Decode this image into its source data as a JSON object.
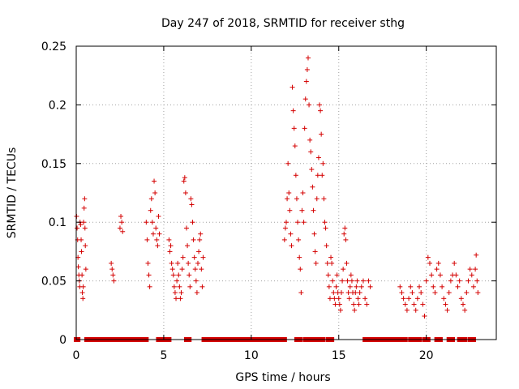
{
  "chart_data": {
    "type": "scatter",
    "title": "Day 247 of 2018, SRMTID for receiver sthg",
    "xlabel": "GPS time / hours",
    "ylabel": "SRMTID / TECUs",
    "xlim": [
      0,
      24
    ],
    "ylim": [
      0,
      0.25
    ],
    "xticks": [
      "0",
      "5",
      "10",
      "15",
      "20"
    ],
    "xtick_values": [
      0,
      5,
      10,
      15,
      20
    ],
    "yticks": [
      "0",
      "0.05",
      "0.1",
      "0.15",
      "0.2",
      "0.25"
    ],
    "ytick_values": [
      0,
      0.05,
      0.1,
      0.15,
      0.2,
      0.25
    ],
    "grid": true,
    "marker": "plus",
    "color": "#d40000",
    "series": [
      {
        "name": "SRMTID",
        "points": [
          [
            0.02,
            0.105
          ],
          [
            0.05,
            0.095
          ],
          [
            0.08,
            0.085
          ],
          [
            0.1,
            0.07
          ],
          [
            0.12,
            0.062
          ],
          [
            0.15,
            0.055
          ],
          [
            0.18,
            0.05
          ],
          [
            0.2,
            0.045
          ],
          [
            0.22,
            0.1
          ],
          [
            0.25,
            0.098
          ],
          [
            0.28,
            0.085
          ],
          [
            0.3,
            0.075
          ],
          [
            0.33,
            0.055
          ],
          [
            0.35,
            0.04
          ],
          [
            0.38,
            0.035
          ],
          [
            0.4,
            0.045
          ],
          [
            0.42,
            0.1
          ],
          [
            0.45,
            0.112
          ],
          [
            0.48,
            0.12
          ],
          [
            0.5,
            0.095
          ],
          [
            0.52,
            0.08
          ],
          [
            0.55,
            0.06
          ],
          [
            2.0,
            0.065
          ],
          [
            2.05,
            0.06
          ],
          [
            2.1,
            0.055
          ],
          [
            2.15,
            0.05
          ],
          [
            2.5,
            0.095
          ],
          [
            2.55,
            0.105
          ],
          [
            2.6,
            0.1
          ],
          [
            2.65,
            0.092
          ],
          [
            4.0,
            0.1
          ],
          [
            4.05,
            0.085
          ],
          [
            4.1,
            0.065
          ],
          [
            4.15,
            0.055
          ],
          [
            4.2,
            0.045
          ],
          [
            4.25,
            0.11
          ],
          [
            4.3,
            0.12
          ],
          [
            4.35,
            0.1
          ],
          [
            4.4,
            0.09
          ],
          [
            4.45,
            0.135
          ],
          [
            4.5,
            0.125
          ],
          [
            4.55,
            0.095
          ],
          [
            4.6,
            0.085
          ],
          [
            4.65,
            0.08
          ],
          [
            4.7,
            0.105
          ],
          [
            4.75,
            0.09
          ],
          [
            5.3,
            0.085
          ],
          [
            5.35,
            0.075
          ],
          [
            5.4,
            0.08
          ],
          [
            5.45,
            0.065
          ],
          [
            5.5,
            0.06
          ],
          [
            5.55,
            0.055
          ],
          [
            5.6,
            0.045
          ],
          [
            5.65,
            0.04
          ],
          [
            5.7,
            0.035
          ],
          [
            5.75,
            0.05
          ],
          [
            5.8,
            0.065
          ],
          [
            5.85,
            0.055
          ],
          [
            5.9,
            0.045
          ],
          [
            5.95,
            0.035
          ],
          [
            6.0,
            0.04
          ],
          [
            6.05,
            0.06
          ],
          [
            6.1,
            0.07
          ],
          [
            6.15,
            0.135
          ],
          [
            6.2,
            0.138
          ],
          [
            6.25,
            0.125
          ],
          [
            6.3,
            0.095
          ],
          [
            6.35,
            0.08
          ],
          [
            6.4,
            0.065
          ],
          [
            6.45,
            0.055
          ],
          [
            6.5,
            0.045
          ],
          [
            6.55,
            0.12
          ],
          [
            6.6,
            0.115
          ],
          [
            6.65,
            0.1
          ],
          [
            6.7,
            0.085
          ],
          [
            6.75,
            0.07
          ],
          [
            6.8,
            0.06
          ],
          [
            6.85,
            0.05
          ],
          [
            6.9,
            0.04
          ],
          [
            6.95,
            0.065
          ],
          [
            7.0,
            0.075
          ],
          [
            7.05,
            0.085
          ],
          [
            7.1,
            0.09
          ],
          [
            7.15,
            0.06
          ],
          [
            7.2,
            0.045
          ],
          [
            7.25,
            0.07
          ],
          [
            11.9,
            0.085
          ],
          [
            11.95,
            0.095
          ],
          [
            12.0,
            0.1
          ],
          [
            12.05,
            0.12
          ],
          [
            12.1,
            0.15
          ],
          [
            12.15,
            0.125
          ],
          [
            12.2,
            0.11
          ],
          [
            12.25,
            0.09
          ],
          [
            12.3,
            0.08
          ],
          [
            12.35,
            0.215
          ],
          [
            12.4,
            0.195
          ],
          [
            12.45,
            0.18
          ],
          [
            12.5,
            0.165
          ],
          [
            12.55,
            0.14
          ],
          [
            12.6,
            0.12
          ],
          [
            12.65,
            0.1
          ],
          [
            12.7,
            0.085
          ],
          [
            12.75,
            0.07
          ],
          [
            12.8,
            0.06
          ],
          [
            12.85,
            0.04
          ],
          [
            12.9,
            0.11
          ],
          [
            12.95,
            0.125
          ],
          [
            13.0,
            0.1
          ],
          [
            13.05,
            0.18
          ],
          [
            13.1,
            0.205
          ],
          [
            13.15,
            0.22
          ],
          [
            13.2,
            0.23
          ],
          [
            13.25,
            0.24
          ],
          [
            13.3,
            0.2
          ],
          [
            13.35,
            0.17
          ],
          [
            13.4,
            0.16
          ],
          [
            13.45,
            0.145
          ],
          [
            13.5,
            0.13
          ],
          [
            13.55,
            0.11
          ],
          [
            13.6,
            0.09
          ],
          [
            13.65,
            0.075
          ],
          [
            13.7,
            0.065
          ],
          [
            13.75,
            0.12
          ],
          [
            13.8,
            0.14
          ],
          [
            13.85,
            0.155
          ],
          [
            13.9,
            0.2
          ],
          [
            13.95,
            0.195
          ],
          [
            14.0,
            0.175
          ],
          [
            14.05,
            0.14
          ],
          [
            14.1,
            0.15
          ],
          [
            14.15,
            0.12
          ],
          [
            14.2,
            0.1
          ],
          [
            14.25,
            0.095
          ],
          [
            14.3,
            0.08
          ],
          [
            14.35,
            0.065
          ],
          [
            14.4,
            0.055
          ],
          [
            14.45,
            0.045
          ],
          [
            14.5,
            0.035
          ],
          [
            14.55,
            0.07
          ],
          [
            14.6,
            0.065
          ],
          [
            14.65,
            0.05
          ],
          [
            14.7,
            0.04
          ],
          [
            14.75,
            0.035
          ],
          [
            14.8,
            0.03
          ],
          [
            14.85,
            0.045
          ],
          [
            14.9,
            0.055
          ],
          [
            14.95,
            0.04
          ],
          [
            15.0,
            0.035
          ],
          [
            15.05,
            0.03
          ],
          [
            15.1,
            0.025
          ],
          [
            15.15,
            0.04
          ],
          [
            15.2,
            0.05
          ],
          [
            15.25,
            0.06
          ],
          [
            15.3,
            0.09
          ],
          [
            15.35,
            0.095
          ],
          [
            15.4,
            0.085
          ],
          [
            15.45,
            0.065
          ],
          [
            15.5,
            0.05
          ],
          [
            15.55,
            0.04
          ],
          [
            15.6,
            0.035
          ],
          [
            15.65,
            0.045
          ],
          [
            15.7,
            0.055
          ],
          [
            15.75,
            0.05
          ],
          [
            15.8,
            0.04
          ],
          [
            15.85,
            0.03
          ],
          [
            15.9,
            0.025
          ],
          [
            15.95,
            0.04
          ],
          [
            16.0,
            0.045
          ],
          [
            16.05,
            0.05
          ],
          [
            16.1,
            0.035
          ],
          [
            16.15,
            0.03
          ],
          [
            16.2,
            0.04
          ],
          [
            16.3,
            0.045
          ],
          [
            16.4,
            0.05
          ],
          [
            16.5,
            0.035
          ],
          [
            16.6,
            0.03
          ],
          [
            16.7,
            0.05
          ],
          [
            16.8,
            0.045
          ],
          [
            18.5,
            0.045
          ],
          [
            18.6,
            0.04
          ],
          [
            18.7,
            0.035
          ],
          [
            18.8,
            0.03
          ],
          [
            18.9,
            0.025
          ],
          [
            19.0,
            0.035
          ],
          [
            19.1,
            0.045
          ],
          [
            19.2,
            0.04
          ],
          [
            19.3,
            0.03
          ],
          [
            19.4,
            0.025
          ],
          [
            19.5,
            0.035
          ],
          [
            19.6,
            0.045
          ],
          [
            19.7,
            0.04
          ],
          [
            19.8,
            0.03
          ],
          [
            19.9,
            0.02
          ],
          [
            20.0,
            0.05
          ],
          [
            20.1,
            0.07
          ],
          [
            20.2,
            0.065
          ],
          [
            20.3,
            0.055
          ],
          [
            20.4,
            0.045
          ],
          [
            20.5,
            0.04
          ],
          [
            20.6,
            0.06
          ],
          [
            20.7,
            0.065
          ],
          [
            20.8,
            0.055
          ],
          [
            20.9,
            0.045
          ],
          [
            21.0,
            0.035
          ],
          [
            21.1,
            0.03
          ],
          [
            21.2,
            0.025
          ],
          [
            21.3,
            0.04
          ],
          [
            21.4,
            0.05
          ],
          [
            21.5,
            0.055
          ],
          [
            21.6,
            0.065
          ],
          [
            21.7,
            0.055
          ],
          [
            21.8,
            0.045
          ],
          [
            21.9,
            0.05
          ],
          [
            22.0,
            0.035
          ],
          [
            22.1,
            0.03
          ],
          [
            22.2,
            0.025
          ],
          [
            22.3,
            0.04
          ],
          [
            22.4,
            0.05
          ],
          [
            22.5,
            0.06
          ],
          [
            22.6,
            0.055
          ],
          [
            22.7,
            0.045
          ],
          [
            22.8,
            0.06
          ],
          [
            22.85,
            0.072
          ],
          [
            22.9,
            0.05
          ],
          [
            22.95,
            0.04
          ]
        ]
      }
    ],
    "zero_value_ranges": [
      [
        0.0,
        0.1
      ],
      [
        0.6,
        4.0
      ],
      [
        4.7,
        5.3
      ],
      [
        6.3,
        6.45
      ],
      [
        7.3,
        11.9
      ],
      [
        12.6,
        12.8
      ],
      [
        13.1,
        13.7
      ],
      [
        13.9,
        14.1
      ],
      [
        14.4,
        14.6
      ],
      [
        16.5,
        18.8
      ],
      [
        19.1,
        19.6
      ],
      [
        19.9,
        20.1
      ],
      [
        20.6,
        20.8
      ],
      [
        21.3,
        21.5
      ],
      [
        21.9,
        22.2
      ],
      [
        22.5,
        22.7
      ]
    ]
  }
}
